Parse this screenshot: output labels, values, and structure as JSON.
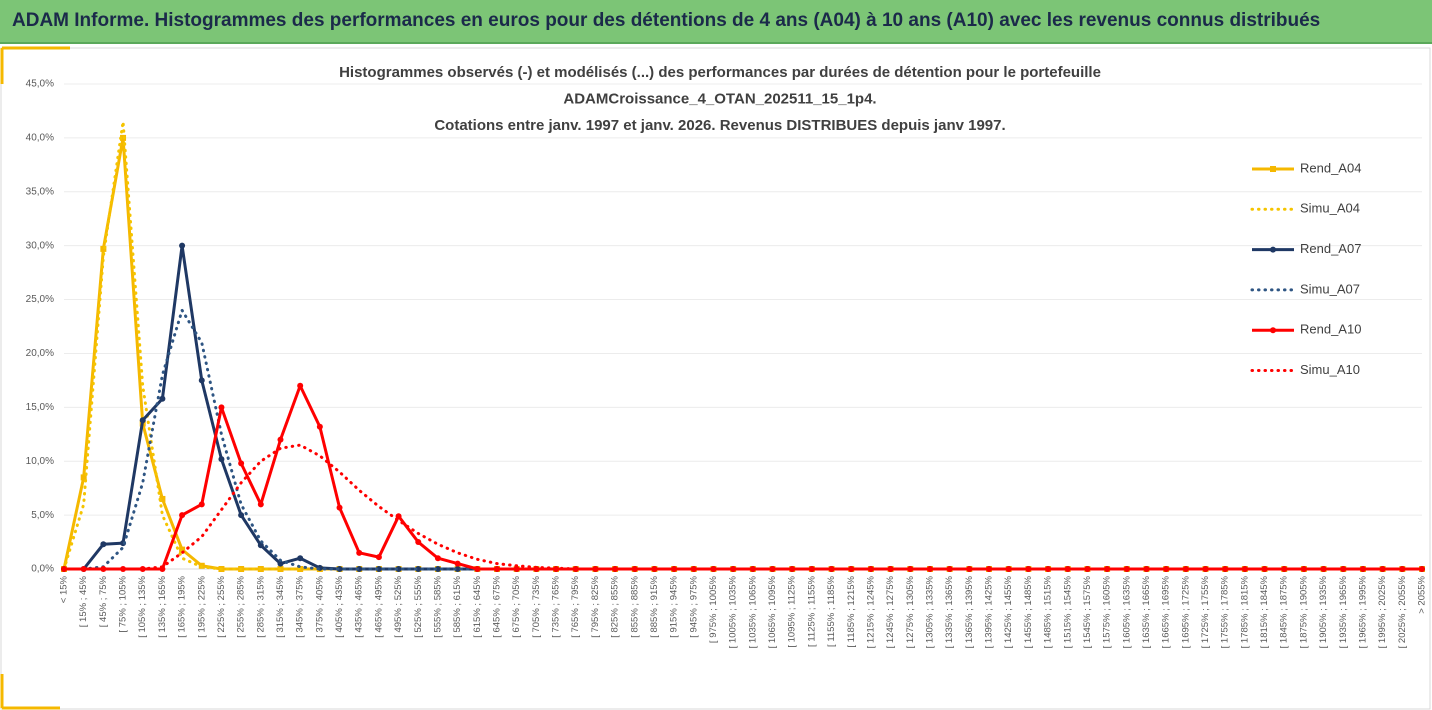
{
  "header": {
    "title": "ADAM Informe. Histogrammes des performances en euros pour des détentions de 4 ans (A04) à 10 ans (A10) avec les revenus connus distribués"
  },
  "chart_data": {
    "type": "line",
    "title": [
      "Histogrammes observés (-) et modélisés (...) des performances par durées de détention pour le portefeuille",
      "ADAMCroissance_4_OTAN_202511_15_1p4.",
      "Cotations entre janv. 1997 et janv. 2026. Revenus DISTRIBUES depuis janv 1997."
    ],
    "categories": [
      "< 15%",
      "[ 15% ; 45%",
      "[ 45% ; 75%",
      "[ 75% ; 105%",
      "[ 105% ; 135%",
      "[ 135% ; 165%",
      "[ 165% ; 195%",
      "[ 195% ; 225%",
      "[ 225% ; 255%",
      "[ 255% ; 285%",
      "[ 285% ; 315%",
      "[ 315% ; 345%",
      "[ 345% ; 375%",
      "[ 375% ; 405%",
      "[ 405% ; 435%",
      "[ 435% ; 465%",
      "[ 465% ; 495%",
      "[ 495% ; 525%",
      "[ 525% ; 555%",
      "[ 555% ; 585%",
      "[ 585% ; 615%",
      "[ 615% ; 645%",
      "[ 645% ; 675%",
      "[ 675% ; 705%",
      "[ 705% ; 735%",
      "[ 735% ; 765%",
      "[ 765% ; 795%",
      "[ 795% ; 825%",
      "[ 825% ; 855%",
      "[ 855% ; 885%",
      "[ 885% ; 915%",
      "[ 915% ; 945%",
      "[ 945% ; 975%",
      "[ 975% ; 1005%",
      "[ 1005% ; 1035%",
      "[ 1035% ; 1065%",
      "[ 1065% ; 1095%",
      "[ 1095% ; 1125%",
      "[ 1125% ; 1155%",
      "[ 1155% ; 1185%",
      "[ 1185% ; 1215%",
      "[ 1215% ; 1245%",
      "[ 1245% ; 1275%",
      "[ 1275% ; 1305%",
      "[ 1305% ; 1335%",
      "[ 1335% ; 1365%",
      "[ 1365% ; 1395%",
      "[ 1395% ; 1425%",
      "[ 1425% ; 1455%",
      "[ 1455% ; 1485%",
      "[ 1485% ; 1515%",
      "[ 1515% ; 1545%",
      "[ 1545% ; 1575%",
      "[ 1575% ; 1605%",
      "[ 1605% ; 1635%",
      "[ 1635% ; 1665%",
      "[ 1665% ; 1695%",
      "[ 1695% ; 1725%",
      "[ 1725% ; 1755%",
      "[ 1755% ; 1785%",
      "[ 1785% ; 1815%",
      "[ 1815% ; 1845%",
      "[ 1845% ; 1875%",
      "[ 1875% ; 1905%",
      "[ 1905% ; 1935%",
      "[ 1935% ; 1965%",
      "[ 1965% ; 1995%",
      "[ 1995% ; 2025%",
      "[ 2025% ; 2055%",
      "> 2055%"
    ],
    "series": [
      {
        "name": "Rend_A04",
        "color": "#f5b800",
        "style": "solid",
        "marker": "square",
        "values": [
          0,
          8.5,
          29.7,
          40,
          13.5,
          6.5,
          1.8,
          0.3,
          0,
          0,
          0,
          0,
          0,
          0,
          0,
          0,
          0,
          0,
          0,
          0,
          0,
          0,
          0,
          0,
          0,
          0,
          0,
          0,
          0,
          0,
          0,
          0,
          0,
          0,
          0,
          0,
          0,
          0,
          0,
          0,
          0,
          0,
          0,
          0,
          0,
          0,
          0,
          0,
          0,
          0,
          0,
          0,
          0,
          0,
          0,
          0,
          0,
          0,
          0,
          0,
          0,
          0,
          0,
          0,
          0,
          0,
          0,
          0,
          0,
          0
        ]
      },
      {
        "name": "Simu_A04",
        "color": "#f5c400",
        "style": "dotted",
        "values": [
          0,
          6,
          29,
          41.5,
          17,
          5,
          1,
          0.2,
          0,
          0,
          0,
          0,
          0,
          0,
          0,
          0,
          0,
          0,
          0,
          0,
          0,
          0,
          0,
          0,
          0,
          0,
          0,
          0,
          0,
          0,
          0,
          0,
          0,
          0,
          0,
          0,
          0,
          0,
          0,
          0,
          0,
          0,
          0,
          0,
          0,
          0,
          0,
          0,
          0,
          0,
          0,
          0,
          0,
          0,
          0,
          0,
          0,
          0,
          0,
          0,
          0,
          0,
          0,
          0,
          0,
          0,
          0,
          0,
          0,
          0
        ]
      },
      {
        "name": "Rend_A07",
        "color": "#1f3864",
        "style": "solid",
        "marker": "circle",
        "values": [
          0,
          0,
          2.3,
          2.4,
          13.8,
          15.8,
          30,
          17.5,
          10.2,
          5,
          2.2,
          0.5,
          1,
          0.1,
          0,
          0,
          0,
          0,
          0,
          0,
          0,
          0,
          0,
          0,
          0,
          0,
          0,
          0,
          0,
          0,
          0,
          0,
          0,
          0,
          0,
          0,
          0,
          0,
          0,
          0,
          0,
          0,
          0,
          0,
          0,
          0,
          0,
          0,
          0,
          0,
          0,
          0,
          0,
          0,
          0,
          0,
          0,
          0,
          0,
          0,
          0,
          0,
          0,
          0,
          0,
          0,
          0,
          0,
          0,
          0
        ]
      },
      {
        "name": "Simu_A07",
        "color": "#2e5583",
        "style": "dotted",
        "values": [
          0,
          0,
          0.2,
          2,
          8,
          18,
          24,
          21,
          12.5,
          6,
          2.6,
          0.8,
          0.2,
          0,
          0,
          0,
          0,
          0,
          0,
          0,
          0,
          0,
          0,
          0,
          0,
          0,
          0,
          0,
          0,
          0,
          0,
          0,
          0,
          0,
          0,
          0,
          0,
          0,
          0,
          0,
          0,
          0,
          0,
          0,
          0,
          0,
          0,
          0,
          0,
          0,
          0,
          0,
          0,
          0,
          0,
          0,
          0,
          0,
          0,
          0,
          0,
          0,
          0,
          0,
          0,
          0,
          0,
          0,
          0,
          0
        ]
      },
      {
        "name": "Rend_A10",
        "color": "#ff0000",
        "style": "solid",
        "marker": "circle",
        "values": [
          0,
          0,
          0,
          0,
          0,
          0,
          5,
          6,
          15,
          9.8,
          6,
          12,
          17,
          13.2,
          5.7,
          1.5,
          1.1,
          4.9,
          2.5,
          1,
          0.5,
          0,
          0,
          0,
          0,
          0,
          0,
          0,
          0,
          0,
          0,
          0,
          0,
          0,
          0,
          0,
          0,
          0,
          0,
          0,
          0,
          0,
          0,
          0,
          0,
          0,
          0,
          0,
          0,
          0,
          0,
          0,
          0,
          0,
          0,
          0,
          0,
          0,
          0,
          0,
          0,
          0,
          0,
          0,
          0,
          0,
          0,
          0,
          0,
          0
        ]
      },
      {
        "name": "Simu_A10",
        "color": "#ff0000",
        "style": "dotted",
        "values": [
          0,
          0,
          0,
          0,
          0,
          0.2,
          1.5,
          3,
          5.5,
          8,
          10,
          11.2,
          11.5,
          10.5,
          9,
          7.3,
          5.8,
          4.5,
          3.3,
          2.3,
          1.5,
          0.9,
          0.5,
          0.3,
          0.15,
          0.08,
          0,
          0,
          0,
          0,
          0,
          0,
          0,
          0,
          0,
          0,
          0,
          0,
          0,
          0,
          0,
          0,
          0,
          0,
          0,
          0,
          0,
          0,
          0,
          0,
          0,
          0,
          0,
          0,
          0,
          0,
          0,
          0,
          0,
          0,
          0,
          0,
          0,
          0,
          0,
          0,
          0,
          0,
          0,
          0
        ]
      }
    ],
    "ylim": [
      0,
      45
    ],
    "yticks": [
      {
        "value": 0,
        "label": "0,0%"
      },
      {
        "value": 5,
        "label": "5,0%"
      },
      {
        "value": 10,
        "label": "10,0%"
      },
      {
        "value": 15,
        "label": "15,0%"
      },
      {
        "value": 20,
        "label": "20,0%"
      },
      {
        "value": 25,
        "label": "25,0%"
      },
      {
        "value": 30,
        "label": "30,0%"
      },
      {
        "value": 35,
        "label": "35,0%"
      },
      {
        "value": 40,
        "label": "40,0%"
      },
      {
        "value": 45,
        "label": "45,0%"
      }
    ],
    "grid": true,
    "legend": "right"
  }
}
